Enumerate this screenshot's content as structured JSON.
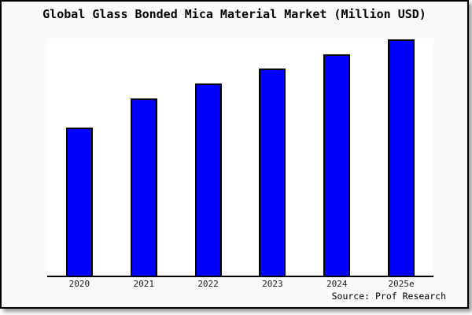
{
  "chart_data": {
    "type": "bar",
    "title": "Global Glass Bonded Mica Material Market (Million USD)",
    "categories": [
      "2020",
      "2021",
      "2022",
      "2023",
      "2024",
      "2025e"
    ],
    "values_relative": [
      62.7,
      75.0,
      81.3,
      87.7,
      93.7,
      100.0
    ],
    "value_note": "no y-axis scale or data labels shown in image; values are relative bar heights indexed to 2025e = 100",
    "xlabel": "",
    "ylabel": "",
    "y_axis_visible": false,
    "grid": false,
    "legend": false,
    "source_label": "Source: Prof Research"
  },
  "colors": {
    "bar_fill": "#0000ff",
    "bar_outline": "#000000",
    "card_background": "#fafafa",
    "plot_background": "#ffffff",
    "card_border": "#000000",
    "title_text": "#000000",
    "axis_label_text": "#1a1a1a"
  }
}
